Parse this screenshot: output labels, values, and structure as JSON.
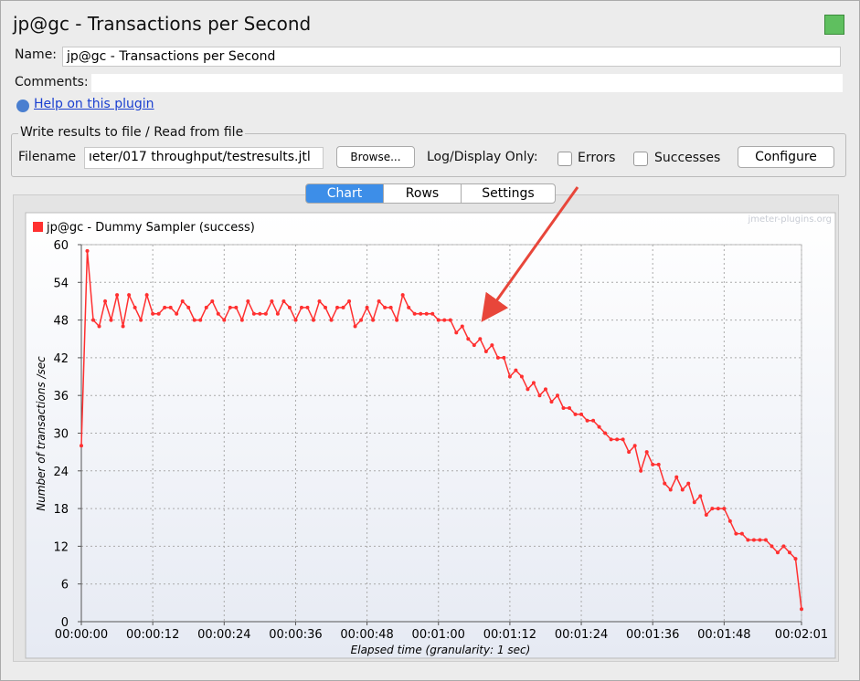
{
  "window_title": "jp@gc - Transactions per Second",
  "name_label": "Name:",
  "name_value": "jp@gc - Transactions per Second",
  "comments_label": "Comments:",
  "help_link": "Help on this plugin",
  "file_group": "Write results to file / Read from file",
  "filename_label": "Filename",
  "filename_value": "ıeter/017 throughput/testresults.jtl",
  "browse": "Browse...",
  "log_label": "Log/Display Only:",
  "errors": "Errors",
  "successes": "Successes",
  "configure": "Configure",
  "tabs": [
    "Chart",
    "Rows",
    "Settings"
  ],
  "chart_data": {
    "type": "line",
    "watermark": "jmeter-plugins.org",
    "x_label": "Elapsed time (granularity: 1 sec)",
    "y_label": "Number of transactions /sec",
    "x": [
      0,
      1,
      2,
      3,
      4,
      5,
      6,
      7,
      8,
      9,
      10,
      11,
      12,
      13,
      14,
      15,
      16,
      17,
      18,
      19,
      20,
      21,
      22,
      23,
      24,
      25,
      26,
      27,
      28,
      29,
      30,
      31,
      32,
      33,
      34,
      35,
      36,
      37,
      38,
      39,
      40,
      41,
      42,
      43,
      44,
      45,
      46,
      47,
      48,
      49,
      50,
      51,
      52,
      53,
      54,
      55,
      56,
      57,
      58,
      59,
      60,
      61,
      62,
      63,
      64,
      65,
      66,
      67,
      68,
      69,
      70,
      71,
      72,
      73,
      74,
      75,
      76,
      77,
      78,
      79,
      80,
      81,
      82,
      83,
      84,
      85,
      86,
      87,
      88,
      89,
      90,
      91,
      92,
      93,
      94,
      95,
      96,
      97,
      98,
      99,
      100,
      101,
      102,
      103,
      104,
      105,
      106,
      107,
      108,
      109,
      110,
      111,
      112,
      113,
      114,
      115,
      116,
      117,
      118,
      119,
      120,
      121
    ],
    "series": [
      {
        "name": "jp@gc - Dummy Sampler (success)",
        "color": "#ff3030",
        "values": [
          28,
          59,
          48,
          47,
          51,
          48,
          52,
          47,
          52,
          50,
          48,
          52,
          49,
          49,
          50,
          50,
          49,
          51,
          50,
          48,
          48,
          50,
          51,
          49,
          48,
          50,
          50,
          48,
          51,
          49,
          49,
          49,
          51,
          49,
          51,
          50,
          48,
          50,
          50,
          48,
          51,
          50,
          48,
          50,
          50,
          51,
          47,
          48,
          50,
          48,
          51,
          50,
          50,
          48,
          52,
          50,
          49,
          49,
          49,
          49,
          48,
          48,
          48,
          46,
          47,
          45,
          44,
          45,
          43,
          44,
          42,
          42,
          39,
          40,
          39,
          37,
          38,
          36,
          37,
          35,
          36,
          34,
          34,
          33,
          33,
          32,
          32,
          31,
          30,
          29,
          29,
          29,
          27,
          28,
          24,
          27,
          25,
          25,
          22,
          21,
          23,
          21,
          22,
          19,
          20,
          17,
          18,
          18,
          18,
          16,
          14,
          14,
          13,
          13,
          13,
          13,
          12,
          11,
          12,
          11,
          10,
          2
        ]
      }
    ],
    "xlim": [
      0,
      121
    ],
    "xticks": [
      {
        "value": 0,
        "label": "00:00:00"
      },
      {
        "value": 12,
        "label": "00:00:12"
      },
      {
        "value": 24,
        "label": "00:00:24"
      },
      {
        "value": 36,
        "label": "00:00:36"
      },
      {
        "value": 48,
        "label": "00:00:48"
      },
      {
        "value": 60,
        "label": "00:01:00"
      },
      {
        "value": 72,
        "label": "00:01:12"
      },
      {
        "value": 84,
        "label": "00:01:24"
      },
      {
        "value": 96,
        "label": "00:01:36"
      },
      {
        "value": 108,
        "label": "00:01:48"
      },
      {
        "value": 121,
        "label": "00:02:01"
      }
    ],
    "ylim": [
      0,
      60
    ],
    "yticks": [
      0,
      6,
      12,
      18,
      24,
      30,
      36,
      42,
      48,
      54,
      60
    ],
    "grid": true
  }
}
